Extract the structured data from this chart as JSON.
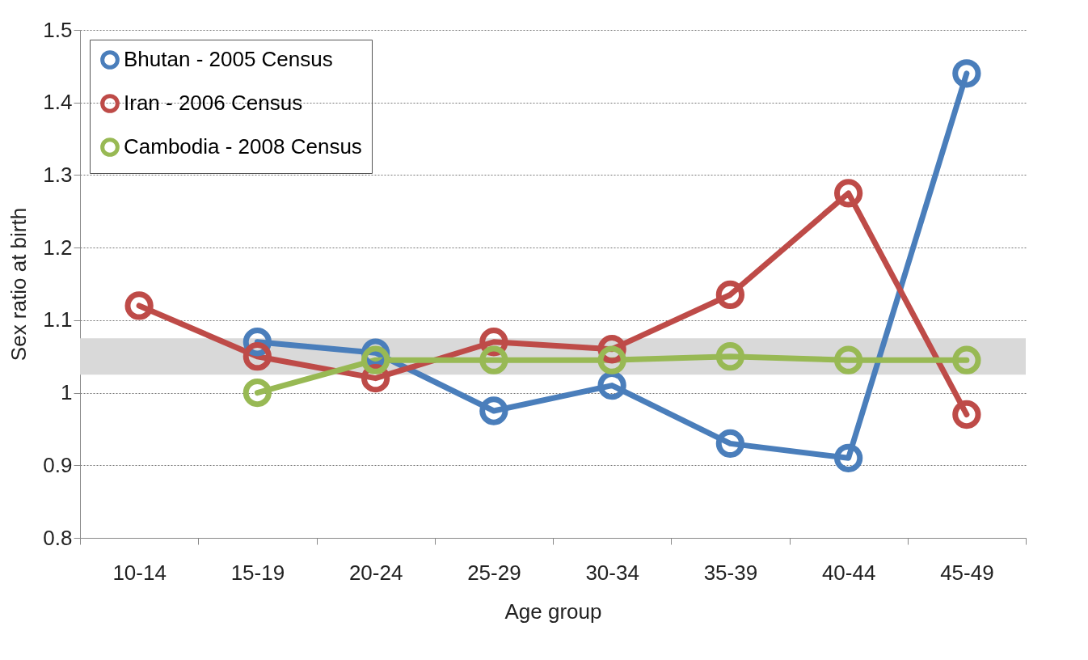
{
  "chart_data": {
    "type": "line",
    "xlabel": "Age group",
    "ylabel": "Sex ratio at birth",
    "categories": [
      "10-14",
      "15-19",
      "20-24",
      "25-29",
      "30-34",
      "35-39",
      "40-44",
      "45-49"
    ],
    "series": [
      {
        "name": "Bhutan - 2005 Census",
        "color": "#4a7ebb",
        "values": [
          null,
          1.07,
          1.055,
          0.975,
          1.01,
          0.93,
          0.91,
          1.44
        ]
      },
      {
        "name": "Iran - 2006 Census",
        "color": "#be4b48",
        "values": [
          1.12,
          1.05,
          1.02,
          1.07,
          1.06,
          1.135,
          1.275,
          0.97
        ]
      },
      {
        "name": "Cambodia - 2008 Census",
        "color": "#98b954",
        "values": [
          null,
          1.0,
          1.045,
          1.045,
          1.045,
          1.05,
          1.045,
          1.045
        ]
      }
    ],
    "ylim": [
      0.8,
      1.5
    ],
    "yticks": [
      0.8,
      0.9,
      1,
      1.1,
      1.2,
      1.3,
      1.4,
      1.5
    ],
    "bands": [
      {
        "axis": "y",
        "from": 1.025,
        "to": 1.075,
        "color": "#d9d9d9"
      }
    ],
    "grid": "y",
    "legend": "top left",
    "marker": "circle",
    "line_style": "solid"
  }
}
